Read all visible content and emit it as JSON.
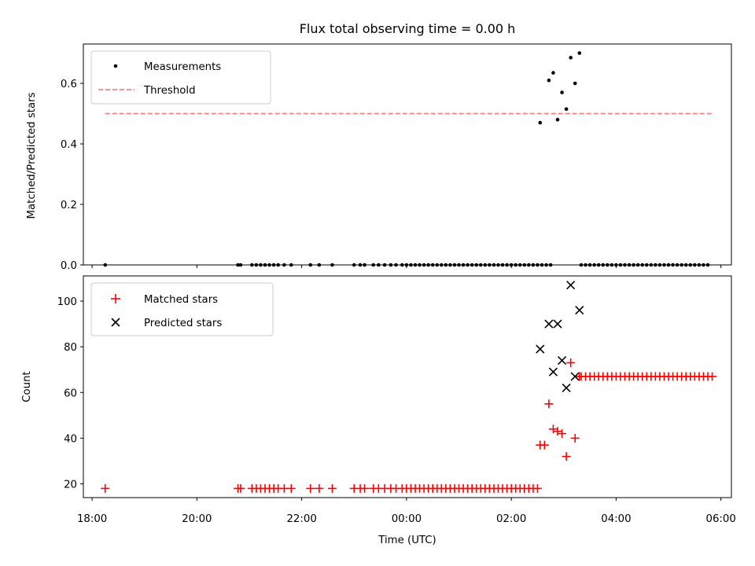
{
  "chart_data": [
    {
      "type": "scatter",
      "title": "Flux total observing time = 0.00 h",
      "xlabel": "",
      "ylabel": "Matched/Predicted stars",
      "xlim": [
        "17:50",
        "30:12"
      ],
      "ylim": [
        0,
        0.73
      ],
      "yticks": [
        0.0,
        0.2,
        0.4,
        0.6
      ],
      "yticklabels": [
        "0.0",
        "0.2",
        "0.4",
        "0.6"
      ],
      "legend_position": "top-left",
      "series": [
        {
          "name": "Measurements",
          "marker": "dot",
          "color": "#000000",
          "x": [
            "18:15",
            "20:47",
            "20:50",
            "21:03",
            "21:08",
            "21:13",
            "21:18",
            "21:23",
            "21:28",
            "21:33",
            "21:40",
            "21:48",
            "22:10",
            "22:20",
            "22:35",
            "23:00",
            "23:07",
            "23:12",
            "23:22",
            "23:28",
            "23:35",
            "23:42",
            "23:48",
            "23:55",
            "24:00",
            "24:05",
            "24:10",
            "24:15",
            "24:20",
            "24:25",
            "24:30",
            "24:35",
            "24:40",
            "24:45",
            "24:50",
            "24:55",
            "25:00",
            "25:05",
            "25:10",
            "25:15",
            "25:20",
            "25:25",
            "25:30",
            "25:35",
            "25:40",
            "25:45",
            "25:50",
            "25:55",
            "26:00",
            "26:05",
            "26:10",
            "26:15",
            "26:20",
            "26:25",
            "26:30",
            "26:35",
            "26:40",
            "26:45",
            "27:20",
            "27:25",
            "27:30",
            "27:35",
            "27:40",
            "27:45",
            "27:50",
            "27:55",
            "28:00",
            "28:05",
            "28:10",
            "28:15",
            "28:20",
            "28:25",
            "28:30",
            "28:35",
            "28:40",
            "28:45",
            "28:50",
            "28:55",
            "29:00",
            "29:05",
            "29:10",
            "29:15",
            "29:20",
            "29:25",
            "29:30",
            "29:35",
            "29:40",
            "29:45",
            "26:33",
            "26:43",
            "26:48",
            "26:53",
            "26:58",
            "27:03",
            "27:08",
            "27:13",
            "27:18"
          ],
          "y": [
            0,
            0,
            0,
            0,
            0,
            0,
            0,
            0,
            0,
            0,
            0,
            0,
            0,
            0,
            0,
            0,
            0,
            0,
            0,
            0,
            0,
            0,
            0,
            0,
            0,
            0,
            0,
            0,
            0,
            0,
            0,
            0,
            0,
            0,
            0,
            0,
            0,
            0,
            0,
            0,
            0,
            0,
            0,
            0,
            0,
            0,
            0,
            0,
            0,
            0,
            0,
            0,
            0,
            0,
            0,
            0,
            0,
            0,
            0,
            0,
            0,
            0,
            0,
            0,
            0,
            0,
            0,
            0,
            0,
            0,
            0,
            0,
            0,
            0,
            0,
            0,
            0,
            0,
            0,
            0,
            0,
            0,
            0,
            0,
            0,
            0,
            0,
            0,
            0.47,
            0.61,
            0.635,
            0.48,
            0.57,
            0.515,
            0.685,
            0.6,
            0.7
          ]
        },
        {
          "name": "Threshold",
          "marker": "dashed-line",
          "color": "#ff7f7f",
          "x": [
            "18:15",
            "29:50"
          ],
          "y": [
            0.5,
            0.5
          ]
        }
      ]
    },
    {
      "type": "scatter",
      "title": "",
      "xlabel": "Time (UTC)",
      "ylabel": "Count",
      "xlim": [
        "17:50",
        "30:12"
      ],
      "ylim": [
        14,
        111
      ],
      "xticks": [
        "18:00",
        "20:00",
        "22:00",
        "00:00",
        "02:00",
        "04:00",
        "06:00"
      ],
      "yticks": [
        20,
        40,
        60,
        80,
        100
      ],
      "yticklabels": [
        "20",
        "40",
        "60",
        "80",
        "100"
      ],
      "legend_position": "top-left",
      "series": [
        {
          "name": "Matched stars",
          "marker": "plus",
          "color": "#ff0000",
          "x": [
            "18:15",
            "20:47",
            "20:50",
            "21:03",
            "21:08",
            "21:13",
            "21:18",
            "21:23",
            "21:28",
            "21:33",
            "21:40",
            "21:48",
            "22:10",
            "22:20",
            "22:35",
            "23:00",
            "23:07",
            "23:12",
            "23:22",
            "23:28",
            "23:35",
            "23:42",
            "23:48",
            "23:55",
            "24:00",
            "24:05",
            "24:10",
            "24:15",
            "24:20",
            "24:25",
            "24:30",
            "24:35",
            "24:40",
            "24:45",
            "24:50",
            "24:55",
            "25:00",
            "25:05",
            "25:10",
            "25:15",
            "25:20",
            "25:25",
            "25:30",
            "25:35",
            "25:40",
            "25:45",
            "25:50",
            "25:55",
            "26:00",
            "26:05",
            "26:10",
            "26:15",
            "26:20",
            "26:25",
            "26:30",
            "26:33",
            "26:38",
            "26:43",
            "26:48",
            "26:53",
            "26:58",
            "27:03",
            "27:08",
            "27:13",
            "27:18",
            "27:20",
            "27:25",
            "27:30",
            "27:35",
            "27:40",
            "27:45",
            "27:50",
            "27:55",
            "28:00",
            "28:05",
            "28:10",
            "28:15",
            "28:20",
            "28:25",
            "28:30",
            "28:35",
            "28:40",
            "28:45",
            "28:50",
            "28:55",
            "29:00",
            "29:05",
            "29:10",
            "29:15",
            "29:20",
            "29:25",
            "29:30",
            "29:35",
            "29:40",
            "29:45",
            "29:50"
          ],
          "y": [
            18,
            18,
            18,
            18,
            18,
            18,
            18,
            18,
            18,
            18,
            18,
            18,
            18,
            18,
            18,
            18,
            18,
            18,
            18,
            18,
            18,
            18,
            18,
            18,
            18,
            18,
            18,
            18,
            18,
            18,
            18,
            18,
            18,
            18,
            18,
            18,
            18,
            18,
            18,
            18,
            18,
            18,
            18,
            18,
            18,
            18,
            18,
            18,
            18,
            18,
            18,
            18,
            18,
            18,
            18,
            37,
            37,
            55,
            44,
            43,
            42,
            32,
            73,
            40,
            67,
            67,
            67,
            67,
            67,
            67,
            67,
            67,
            67,
            67,
            67,
            67,
            67,
            67,
            67,
            67,
            67,
            67,
            67,
            67,
            67,
            67,
            67,
            67,
            67,
            67,
            67,
            67,
            67,
            67,
            67,
            67
          ]
        },
        {
          "name": "Predicted stars",
          "marker": "x",
          "color": "#000000",
          "x": [
            "26:33",
            "26:43",
            "26:48",
            "26:53",
            "26:58",
            "27:03",
            "27:08",
            "27:13",
            "27:18"
          ],
          "y": [
            79,
            90,
            69,
            90,
            74,
            62,
            107,
            67,
            96
          ]
        }
      ]
    }
  ]
}
